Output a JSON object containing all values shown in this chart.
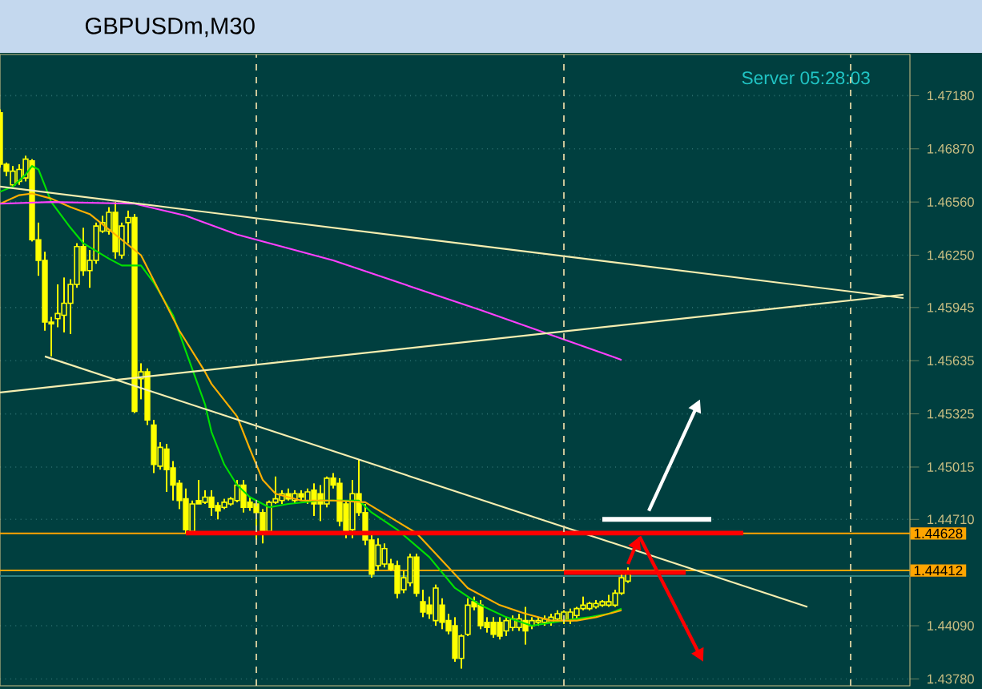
{
  "chart_data": {
    "type": "candlestick",
    "title": "GBPUSDm,M30",
    "annotations": [
      "Server  05:28:03"
    ],
    "color": "#ffff00",
    "categories": [
      null,
      null,
      null,
      null,
      null,
      null,
      null,
      null,
      null,
      null,
      null,
      null,
      null,
      null,
      null,
      null,
      null,
      null,
      null,
      null,
      null,
      null,
      null,
      null,
      null,
      null,
      null,
      null,
      null,
      null,
      null,
      null,
      null,
      null,
      null,
      null,
      null,
      null,
      null,
      null,
      null,
      null,
      null,
      null,
      null,
      null,
      null,
      null,
      null,
      null,
      null,
      null,
      null,
      null,
      null,
      null,
      null,
      null,
      null,
      null,
      null,
      null,
      null,
      null,
      null,
      null,
      null,
      null,
      null,
      null,
      null,
      null,
      null,
      null,
      null,
      null,
      null,
      null,
      null,
      null,
      null,
      null,
      null,
      null,
      null,
      null,
      null,
      null,
      null,
      null,
      null,
      null,
      null,
      null,
      null,
      null,
      null,
      null,
      null,
      null,
      null,
      null,
      null,
      null,
      null,
      null,
      null,
      null,
      null,
      null,
      null,
      null,
      null,
      null,
      null,
      null,
      null,
      null,
      null,
      null,
      null,
      null,
      null,
      null,
      null,
      null,
      null,
      null,
      null,
      null,
      null,
      null,
      null,
      null,
      null,
      null,
      null,
      null,
      null,
      null,
      null,
      null
    ],
    "ohlc": [
      [
        1.4708,
        1.471,
        1.4676,
        1.4678
      ],
      [
        1.4678,
        1.4679,
        1.4671,
        1.4674
      ],
      [
        1.4666,
        1.4677,
        1.4665,
        1.4674
      ],
      [
        1.4668,
        1.4678,
        1.4666,
        1.4675
      ],
      [
        1.467,
        1.4683,
        1.4668,
        1.4681
      ],
      [
        1.468,
        1.4681,
        1.4633,
        1.4634
      ],
      [
        1.4634,
        1.4644,
        1.4613,
        1.4622
      ],
      [
        1.4622,
        1.4627,
        1.4581,
        1.4586
      ],
      [
        1.4586,
        1.4589,
        1.4566,
        1.4585
      ],
      [
        1.4588,
        1.4608,
        1.4583,
        1.4591
      ],
      [
        1.459,
        1.4612,
        1.458,
        1.4597
      ],
      [
        1.4597,
        1.4611,
        1.4579,
        1.4608
      ],
      [
        1.4608,
        1.4632,
        1.4606,
        1.463
      ],
      [
        1.463,
        1.4641,
        1.4613,
        1.4616
      ],
      [
        1.4616,
        1.4628,
        1.4606,
        1.4622
      ],
      [
        1.4622,
        1.4644,
        1.462,
        1.4642
      ],
      [
        1.4639,
        1.4648,
        1.4638,
        1.4644
      ],
      [
        1.4639,
        1.4653,
        1.4637,
        1.465
      ],
      [
        1.465,
        1.4656,
        1.4623,
        1.4627
      ],
      [
        1.4625,
        1.4644,
        1.4623,
        1.4642
      ],
      [
        1.4644,
        1.4651,
        1.4632,
        1.4647
      ],
      [
        1.4647,
        1.4649,
        1.4533,
        1.4534
      ],
      [
        1.4553,
        1.4562,
        1.4541,
        1.4557
      ],
      [
        1.4557,
        1.4559,
        1.4526,
        1.4529
      ],
      [
        1.4526,
        1.4529,
        1.4498,
        1.4503
      ],
      [
        1.4502,
        1.4516,
        1.45,
        1.4513
      ],
      [
        1.4512,
        1.4515,
        1.4487,
        1.45
      ],
      [
        1.4501,
        1.4505,
        1.4482,
        1.4491
      ],
      [
        1.4492,
        1.4494,
        1.4477,
        1.4482
      ],
      [
        1.4483,
        1.4489,
        1.4463,
        1.4465
      ],
      [
        1.4464,
        1.4482,
        1.4462,
        1.448
      ],
      [
        1.4482,
        1.4494,
        1.448,
        1.448
      ],
      [
        1.4481,
        1.4488,
        1.448,
        1.4484
      ],
      [
        1.4484,
        1.4488,
        1.4473,
        1.4478
      ],
      [
        1.4479,
        1.4481,
        1.4471,
        1.4476
      ],
      [
        1.4478,
        1.4483,
        1.4477,
        1.4481
      ],
      [
        1.448,
        1.4484,
        1.4479,
        1.4483
      ],
      [
        1.4482,
        1.4494,
        1.4481,
        1.4491
      ],
      [
        1.4491,
        1.4494,
        1.4475,
        1.4478
      ],
      [
        1.4481,
        1.4484,
        1.4476,
        1.4478
      ],
      [
        1.448,
        1.4482,
        1.4459,
        1.4475
      ],
      [
        1.4475,
        1.4477,
        1.4457,
        1.4464
      ],
      [
        1.4464,
        1.4482,
        1.4462,
        1.4481
      ],
      [
        1.4481,
        1.4496,
        1.448,
        1.4483
      ],
      [
        1.4482,
        1.4488,
        1.448,
        1.4486
      ],
      [
        1.4486,
        1.4489,
        1.4482,
        1.4483
      ],
      [
        1.4482,
        1.4488,
        1.448,
        1.4486
      ],
      [
        1.4486,
        1.4488,
        1.4482,
        1.4484
      ],
      [
        1.4482,
        1.4489,
        1.448,
        1.4487
      ],
      [
        1.4488,
        1.4492,
        1.4473,
        1.448
      ],
      [
        1.4486,
        1.4491,
        1.447,
        1.448
      ],
      [
        1.448,
        1.4496,
        1.4478,
        1.4495
      ],
      [
        1.4495,
        1.4498,
        1.4489,
        1.4491
      ],
      [
        1.4492,
        1.4495,
        1.4467,
        1.447
      ],
      [
        1.448,
        1.4482,
        1.446,
        1.4464
      ],
      [
        1.4465,
        1.4494,
        1.446,
        1.4486
      ],
      [
        1.4486,
        1.4506,
        1.4473,
        1.4475
      ],
      [
        1.4475,
        1.448,
        1.4456,
        1.4459
      ],
      [
        1.4459,
        1.4462,
        1.4437,
        1.4439
      ],
      [
        1.4444,
        1.446,
        1.4441,
        1.4456
      ],
      [
        1.4445,
        1.4457,
        1.4443,
        1.4454
      ],
      [
        1.4445,
        1.4448,
        1.4441,
        1.4442
      ],
      [
        1.4444,
        1.4447,
        1.4425,
        1.4428
      ],
      [
        1.443,
        1.4441,
        1.4428,
        1.4437
      ],
      [
        1.4434,
        1.4451,
        1.4432,
        1.4449
      ],
      [
        1.4449,
        1.4451,
        1.4426,
        1.4428
      ],
      [
        1.4423,
        1.443,
        1.4414,
        1.4417
      ],
      [
        1.4421,
        1.4426,
        1.4413,
        1.4416
      ],
      [
        1.4412,
        1.4433,
        1.4409,
        1.4431
      ],
      [
        1.4421,
        1.4425,
        1.4407,
        1.4411
      ],
      [
        1.4412,
        1.4416,
        1.4404,
        1.4406
      ],
      [
        1.4409,
        1.4414,
        1.4388,
        1.439
      ],
      [
        1.439,
        1.4404,
        1.4384,
        1.4403
      ],
      [
        1.4404,
        1.4425,
        1.4403,
        1.4421
      ],
      [
        1.4423,
        1.4426,
        1.4418,
        1.442
      ],
      [
        1.4421,
        1.4424,
        1.4407,
        1.4409
      ],
      [
        1.4411,
        1.4414,
        1.4405,
        1.4408
      ],
      [
        1.4411,
        1.4414,
        1.4402,
        1.4404
      ],
      [
        1.4411,
        1.4414,
        1.4401,
        1.4403
      ],
      [
        1.4406,
        1.4414,
        1.4403,
        1.4412
      ],
      [
        1.4408,
        1.4415,
        1.4406,
        1.4413
      ],
      [
        1.4408,
        1.4416,
        1.4406,
        1.4413
      ],
      [
        1.4412,
        1.442,
        1.4398,
        1.4406
      ],
      [
        1.4409,
        1.4414,
        1.4407,
        1.4412
      ],
      [
        1.4411,
        1.4414,
        1.4409,
        1.4412
      ],
      [
        1.4411,
        1.4415,
        1.4409,
        1.4413
      ],
      [
        1.4411,
        1.4416,
        1.4409,
        1.4414
      ],
      [
        1.4413,
        1.4418,
        1.4411,
        1.4416
      ],
      [
        1.4412,
        1.4418,
        1.441,
        1.4417
      ],
      [
        1.4412,
        1.4419,
        1.441,
        1.4417
      ],
      [
        1.4415,
        1.442,
        1.4413,
        1.4419
      ],
      [
        1.4419,
        1.4426,
        1.4418,
        1.4421
      ],
      [
        1.4419,
        1.4423,
        1.4418,
        1.4422
      ],
      [
        1.442,
        1.4424,
        1.4419,
        1.4422
      ],
      [
        1.4421,
        1.4424,
        1.442,
        1.4423
      ],
      [
        1.4421,
        1.4427,
        1.442,
        1.4423
      ],
      [
        1.4421,
        1.443,
        1.442,
        1.4428
      ],
      [
        1.4428,
        1.4439,
        1.4427,
        1.4437
      ],
      [
        1.4435,
        1.4443,
        1.4434,
        1.4441
      ],
      null,
      null,
      null,
      null,
      null,
      null,
      null,
      null,
      null,
      null,
      null,
      null,
      null,
      null,
      null,
      null,
      null,
      null,
      null,
      null,
      null,
      null,
      null,
      null,
      null,
      null,
      null,
      null,
      null,
      null,
      null,
      null,
      null,
      null,
      null,
      null,
      null,
      null,
      null,
      null,
      null,
      null,
      null
    ],
    "series": [
      {
        "type": "line",
        "color": "#00e000",
        "values": [
          1.4662,
          null,
          1.4665,
          null,
          1.4672,
          1.4677,
          1.4675,
          null,
          1.4656,
          null,
          null,
          1.4641,
          null,
          1.4632,
          null,
          null,
          null,
          1.4623,
          null,
          1.4619,
          null,
          null,
          1.4619,
          null,
          1.4609,
          null,
          null,
          1.459,
          null,
          1.4569,
          null,
          null,
          1.4538,
          1.4522,
          null,
          1.4503,
          null,
          1.4491,
          null,
          1.4484,
          null,
          null,
          1.4478,
          null,
          null,
          1.448,
          null,
          null,
          null,
          null,
          1.4482,
          null,
          null,
          null,
          null,
          null,
          1.4482,
          null,
          1.4475,
          null,
          null,
          null,
          1.4465,
          null,
          null,
          null,
          null,
          1.4449,
          null,
          null,
          null,
          1.4431,
          null,
          null,
          null,
          1.4421,
          null,
          null,
          null,
          1.4414,
          null,
          null,
          null,
          1.4409,
          null,
          null,
          null,
          null,
          1.4412,
          null,
          null,
          null,
          1.4414,
          null,
          null,
          1.4416,
          null,
          1.4419,
          null,
          null,
          null,
          null,
          null,
          null,
          null,
          null,
          null,
          null,
          null,
          null,
          null,
          null,
          null,
          null,
          null,
          null,
          null,
          null,
          null,
          null,
          null,
          null,
          null,
          null,
          null,
          null,
          null,
          null,
          null,
          null,
          null,
          null,
          null,
          null,
          null,
          null,
          null,
          null,
          null,
          null,
          null,
          null
        ]
      },
      {
        "type": "line",
        "color": "#ffb000",
        "values": [
          1.4655,
          null,
          null,
          1.466,
          null,
          1.4661,
          null,
          null,
          1.4658,
          null,
          null,
          1.4653,
          null,
          null,
          1.4649,
          null,
          null,
          null,
          1.4637,
          null,
          null,
          null,
          1.4625,
          null,
          null,
          1.4603,
          null,
          null,
          1.4581,
          null,
          null,
          null,
          1.4557,
          1.455,
          null,
          null,
          null,
          1.4531,
          null,
          1.4512,
          null,
          1.4494,
          null,
          1.4486,
          null,
          null,
          null,
          1.4482,
          null,
          null,
          null,
          null,
          1.4482,
          null,
          null,
          null,
          null,
          1.4481,
          null,
          null,
          null,
          1.4472,
          null,
          null,
          null,
          1.4463,
          null,
          null,
          null,
          1.4447,
          null,
          null,
          null,
          1.4431,
          null,
          null,
          null,
          null,
          1.4421,
          null,
          null,
          null,
          1.4416,
          null,
          null,
          null,
          1.4412,
          null,
          null,
          null,
          1.4412,
          null,
          null,
          1.4414,
          null,
          null,
          null,
          1.4418,
          null,
          null,
          null,
          null,
          null,
          null,
          null,
          null,
          null,
          null,
          null,
          null,
          null,
          null,
          null,
          null,
          null,
          null,
          null,
          null,
          null,
          null,
          null,
          null,
          null,
          null,
          null,
          null,
          null,
          null,
          null,
          null,
          null,
          null,
          null,
          null,
          null,
          null,
          null,
          null,
          null,
          null,
          null,
          null
        ]
      },
      {
        "type": "line",
        "color": "#ff40ff",
        "values": [
          1.4655,
          null,
          null,
          null,
          null,
          null,
          null,
          null,
          1.4656,
          null,
          null,
          null,
          null,
          null,
          null,
          null,
          null,
          null,
          null,
          null,
          null,
          1.4655,
          null,
          null,
          null,
          null,
          null,
          null,
          null,
          1.4648,
          null,
          null,
          null,
          null,
          null,
          null,
          null,
          1.4637,
          null,
          null,
          null,
          null,
          null,
          null,
          null,
          null,
          null,
          null,
          null,
          null,
          null,
          null,
          1.4622,
          null,
          null,
          null,
          null,
          null,
          null,
          null,
          null,
          null,
          null,
          null,
          null,
          null,
          null,
          null,
          null,
          null,
          null,
          null,
          null,
          null,
          null,
          1.4593,
          null,
          null,
          null,
          null,
          null,
          null,
          null,
          null,
          null,
          null,
          null,
          null,
          null,
          null,
          null,
          null,
          null,
          null,
          null,
          null,
          null,
          1.4564,
          null,
          null,
          null,
          null,
          null,
          null,
          null,
          null,
          null,
          null,
          null,
          null,
          null,
          null,
          null,
          null,
          null,
          null,
          null,
          null,
          null,
          null,
          null,
          null,
          null,
          null,
          null,
          null,
          null,
          null,
          null,
          null,
          null,
          null,
          null,
          null,
          null,
          null,
          null,
          null,
          null,
          null,
          null,
          null
        ]
      },
      {
        "type": "line",
        "color": "#f5eeb0",
        "values": [
          1.4665,
          null,
          null,
          null,
          null,
          null,
          null,
          null,
          null,
          null,
          null,
          null,
          null,
          null,
          null,
          null,
          null,
          null,
          null,
          null,
          null,
          null,
          null,
          null,
          null,
          null,
          null,
          null,
          null,
          null,
          null,
          null,
          null,
          null,
          null,
          null,
          null,
          null,
          null,
          null,
          null,
          null,
          null,
          null,
          null,
          null,
          null,
          null,
          null,
          null,
          null,
          null,
          null,
          null,
          null,
          null,
          null,
          null,
          null,
          null,
          null,
          null,
          null,
          null,
          null,
          null,
          null,
          null,
          null,
          null,
          null,
          null,
          null,
          null,
          null,
          null,
          null,
          null,
          null,
          null,
          null,
          null,
          null,
          null,
          null,
          null,
          null,
          null,
          null,
          null,
          null,
          null,
          null,
          null,
          null,
          null,
          null,
          null,
          null,
          null,
          null,
          null,
          null,
          null,
          null,
          null,
          null,
          null,
          null,
          null,
          null,
          null,
          null,
          null,
          null,
          null,
          null,
          null,
          null,
          null,
          null,
          null,
          null,
          null,
          null,
          null,
          null,
          null,
          null,
          null,
          null,
          null,
          null,
          null,
          null,
          null,
          null,
          null,
          null,
          null,
          null,
          1.46
        ]
      },
      {
        "type": "line",
        "color": "#f5eeb0",
        "values": [
          1.4545,
          null,
          null,
          null,
          null,
          null,
          null,
          null,
          null,
          null,
          null,
          null,
          null,
          null,
          null,
          null,
          null,
          null,
          null,
          null,
          null,
          null,
          null,
          null,
          null,
          null,
          null,
          null,
          null,
          null,
          null,
          null,
          null,
          null,
          null,
          null,
          null,
          null,
          null,
          null,
          null,
          null,
          null,
          null,
          null,
          null,
          null,
          null,
          null,
          null,
          null,
          null,
          null,
          null,
          null,
          null,
          null,
          null,
          null,
          null,
          null,
          null,
          null,
          null,
          null,
          null,
          null,
          null,
          null,
          null,
          null,
          null,
          null,
          null,
          null,
          null,
          null,
          null,
          null,
          null,
          null,
          null,
          null,
          null,
          null,
          null,
          null,
          null,
          null,
          null,
          null,
          null,
          null,
          null,
          null,
          null,
          null,
          null,
          null,
          null,
          null,
          null,
          null,
          null,
          null,
          null,
          null,
          null,
          null,
          null,
          null,
          null,
          null,
          null,
          null,
          null,
          null,
          null,
          null,
          null,
          null,
          null,
          null,
          null,
          null,
          null,
          null,
          null,
          null,
          null,
          null,
          null,
          null,
          null,
          null,
          null,
          null,
          null,
          null,
          null,
          null,
          1.4602
        ]
      },
      {
        "type": "line",
        "color": "#f5eeb0",
        "values": [
          null,
          null,
          null,
          null,
          null,
          null,
          null,
          1.4566,
          null,
          null,
          null,
          null,
          null,
          null,
          null,
          null,
          null,
          null,
          null,
          null,
          null,
          null,
          null,
          null,
          null,
          null,
          null,
          null,
          null,
          null,
          null,
          null,
          null,
          null,
          null,
          null,
          null,
          null,
          null,
          null,
          null,
          null,
          null,
          null,
          null,
          null,
          null,
          null,
          null,
          null,
          null,
          null,
          null,
          null,
          null,
          null,
          null,
          null,
          null,
          null,
          null,
          null,
          null,
          null,
          null,
          null,
          null,
          null,
          null,
          null,
          null,
          null,
          null,
          null,
          null,
          null,
          null,
          null,
          null,
          null,
          null,
          null,
          null,
          null,
          null,
          null,
          null,
          null,
          null,
          null,
          null,
          null,
          null,
          null,
          null,
          null,
          null,
          null,
          null,
          null,
          null,
          null,
          null,
          null,
          null,
          null,
          null,
          null,
          null,
          null,
          null,
          null,
          null,
          null,
          null,
          null,
          null,
          null,
          null,
          null,
          null,
          null,
          null,
          null,
          null,
          null,
          1.442,
          null,
          null,
          null,
          null,
          null,
          null,
          null,
          null,
          null,
          null,
          null,
          null,
          null,
          null,
          null
        ]
      },
      {
        "type": "line",
        "color": "#ff0000",
        "values": [
          null,
          null,
          null,
          null,
          null,
          null,
          null,
          null,
          null,
          null,
          null,
          null,
          null,
          null,
          null,
          null,
          null,
          null,
          null,
          null,
          null,
          null,
          null,
          null,
          null,
          null,
          null,
          null,
          null,
          1.4463,
          null,
          null,
          null,
          null,
          null,
          null,
          null,
          null,
          null,
          null,
          null,
          null,
          null,
          null,
          null,
          null,
          null,
          null,
          null,
          null,
          null,
          null,
          null,
          null,
          null,
          null,
          null,
          null,
          null,
          null,
          null,
          null,
          null,
          null,
          null,
          null,
          null,
          null,
          null,
          null,
          null,
          null,
          null,
          null,
          null,
          null,
          null,
          null,
          null,
          null,
          null,
          null,
          null,
          null,
          null,
          null,
          null,
          null,
          null,
          null,
          null,
          null,
          null,
          null,
          null,
          null,
          null,
          null,
          null,
          null,
          null,
          null,
          null,
          null,
          null,
          null,
          null,
          null,
          null,
          null,
          null,
          null,
          null,
          null,
          null,
          null,
          1.4463,
          null,
          null,
          null,
          null,
          null,
          null,
          null,
          null,
          null,
          null,
          null,
          null,
          null,
          null,
          null,
          null,
          null,
          null,
          null,
          null,
          null,
          null,
          null,
          null,
          null
        ]
      },
      {
        "type": "line",
        "color": "#ff0000",
        "values": [
          null,
          null,
          null,
          null,
          null,
          null,
          null,
          null,
          null,
          null,
          null,
          null,
          null,
          null,
          null,
          null,
          null,
          null,
          null,
          null,
          null,
          null,
          null,
          null,
          null,
          null,
          null,
          null,
          null,
          null,
          null,
          null,
          null,
          null,
          null,
          null,
          null,
          null,
          null,
          null,
          null,
          null,
          null,
          null,
          null,
          null,
          null,
          null,
          null,
          null,
          null,
          null,
          null,
          null,
          null,
          null,
          null,
          null,
          null,
          null,
          null,
          null,
          null,
          null,
          null,
          null,
          null,
          null,
          null,
          null,
          null,
          null,
          null,
          null,
          null,
          null,
          null,
          null,
          null,
          null,
          null,
          null,
          null,
          null,
          null,
          null,
          null,
          null,
          1.444,
          null,
          null,
          null,
          null,
          null,
          null,
          null,
          null,
          null,
          null,
          null,
          null,
          null,
          null,
          null,
          null,
          null,
          null,
          1.444,
          null,
          null,
          null,
          null,
          null,
          null,
          null,
          null,
          null,
          null,
          null,
          null,
          null,
          null,
          null,
          null,
          null,
          null,
          null,
          null,
          null,
          null,
          null,
          null,
          null,
          null,
          null,
          null,
          null,
          null,
          null,
          null,
          null,
          null
        ]
      },
      {
        "type": "line",
        "color": "#ffffff",
        "values": [
          null,
          null,
          null,
          null,
          null,
          null,
          null,
          null,
          null,
          null,
          null,
          null,
          null,
          null,
          null,
          null,
          null,
          null,
          null,
          null,
          null,
          null,
          null,
          null,
          null,
          null,
          null,
          null,
          null,
          null,
          null,
          null,
          null,
          null,
          null,
          null,
          null,
          null,
          null,
          null,
          null,
          null,
          null,
          null,
          null,
          null,
          null,
          null,
          null,
          null,
          null,
          null,
          null,
          null,
          null,
          null,
          null,
          null,
          null,
          null,
          null,
          null,
          null,
          null,
          null,
          null,
          null,
          null,
          null,
          null,
          null,
          null,
          null,
          null,
          null,
          null,
          null,
          null,
          null,
          null,
          null,
          null,
          null,
          null,
          null,
          null,
          null,
          null,
          null,
          null,
          null,
          null,
          null,
          null,
          1.4471,
          null,
          null,
          null,
          null,
          null,
          null,
          null,
          null,
          null,
          null,
          null,
          null,
          null,
          null,
          null,
          null,
          1.4471,
          null,
          null,
          null,
          null,
          null,
          null,
          null,
          null,
          null,
          null,
          null,
          null,
          null,
          null,
          null,
          null,
          null,
          null,
          null,
          null,
          null,
          null,
          null,
          null,
          null,
          null,
          null,
          null,
          null,
          null
        ]
      }
    ],
    "ylim": [
      1.4374,
      1.4742
    ],
    "yticks": [
      {
        "value": 1.4718,
        "label": "1.47180"
      },
      {
        "value": 1.4687,
        "label": "1.46870"
      },
      {
        "value": 1.4656,
        "label": "1.46560"
      },
      {
        "value": 1.4625,
        "label": "1.46250"
      },
      {
        "value": 1.45945,
        "label": "1.45945"
      },
      {
        "value": 1.45635,
        "label": "1.45635"
      },
      {
        "value": 1.45325,
        "label": "1.45325"
      },
      {
        "value": 1.45015,
        "label": "1.45015"
      },
      {
        "value": 1.4471,
        "label": "1.44710"
      },
      {
        "value": 1.4409,
        "label": "1.44090"
      },
      {
        "value": 1.4378,
        "label": "1.43780"
      }
    ],
    "ref_lines": [
      {
        "axis": "y",
        "value": 1.44628,
        "label": "1.44628",
        "color": "#ffa500"
      },
      {
        "axis": "y",
        "value": 1.44412,
        "label": "1.44412",
        "color": "#ffa500"
      },
      {
        "axis": "y",
        "value": 1.4438,
        "color": "#2f8080"
      }
    ],
    "grid": "y",
    "tick_labels": "y"
  }
}
